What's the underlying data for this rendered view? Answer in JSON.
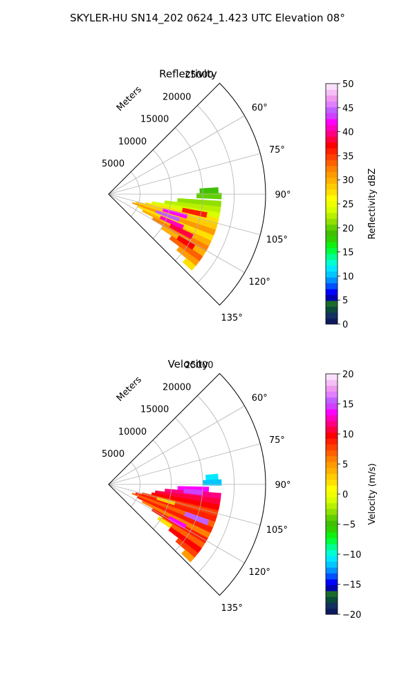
{
  "suptitle": "SKYLER-HU  SN14_202  0624_1.423 UTC Elevation 08°",
  "chart_data": [
    {
      "type": "heatmap",
      "subtype": "polar-sector-radar",
      "title": "Reflectivity",
      "range_label": "Meters",
      "range_ticks": [
        "5000",
        "10000",
        "15000",
        "20000",
        "25000"
      ],
      "range_max": 25000,
      "azimuth_min": 45,
      "azimuth_max": 135,
      "azimuth_ticks": [
        "60°",
        "75°",
        "90°",
        "105°",
        "120°",
        "135°"
      ],
      "grid": true,
      "colorbar": {
        "label": "Reflectivity dBZ",
        "min": 0,
        "max": 50,
        "ticks": [
          "0",
          "5",
          "10",
          "15",
          "20",
          "25",
          "30",
          "35",
          "40",
          "45",
          "50"
        ],
        "colors": [
          "#0d1b5e",
          "#123060",
          "#0b4a3a",
          "#1a6b2a",
          "#0000b0",
          "#0000ff",
          "#0050ff",
          "#0090ff",
          "#00c8ff",
          "#00e8ff",
          "#00ffd0",
          "#00ff90",
          "#00ff40",
          "#10f010",
          "#30d000",
          "#40c000",
          "#60d000",
          "#90e000",
          "#b8f000",
          "#d8ff00",
          "#f0ff00",
          "#ffff00",
          "#ffe000",
          "#ffcc00",
          "#ffb000",
          "#ff9a00",
          "#ff8000",
          "#ff6000",
          "#ff4000",
          "#ff2000",
          "#ff0000",
          "#ff0040",
          "#ff0080",
          "#ff00c0",
          "#ff00ff",
          "#d040ff",
          "#c060ff",
          "#e080ff",
          "#ee99ee",
          "#f5c0f5",
          "#fbe0fb"
        ]
      },
      "echo_cells": [
        {
          "az": 88,
          "r": [
            14500,
            17500
          ],
          "v": 19
        },
        {
          "az": 91,
          "r": [
            14000,
            18000
          ],
          "v": 20
        },
        {
          "az": 95,
          "r": [
            11000,
            18000
          ],
          "v": 21
        },
        {
          "az": 98,
          "r": [
            9000,
            18000
          ],
          "v": 22
        },
        {
          "az": 101,
          "r": [
            7000,
            18000
          ],
          "v": 24
        },
        {
          "az": 104,
          "r": [
            6000,
            18000
          ],
          "v": 27
        },
        {
          "az": 107,
          "r": [
            4500,
            18000
          ],
          "v": 29
        },
        {
          "az": 110,
          "r": [
            4000,
            18000
          ],
          "v": 31
        },
        {
          "az": 113,
          "r": [
            5000,
            18000
          ],
          "v": 28
        },
        {
          "az": 116,
          "r": [
            6000,
            18000
          ],
          "v": 30
        },
        {
          "az": 119,
          "r": [
            8000,
            18000
          ],
          "v": 32
        },
        {
          "az": 122,
          "r": [
            10000,
            18000
          ],
          "v": 30
        },
        {
          "az": 125,
          "r": [
            12000,
            18000
          ],
          "v": 33
        },
        {
          "az": 128,
          "r": [
            14000,
            18000
          ],
          "v": 31
        },
        {
          "az": 131,
          "r": [
            16000,
            18000
          ],
          "v": 28
        },
        {
          "az": 106,
          "r": [
            9000,
            13000
          ],
          "v": 42
        },
        {
          "az": 110,
          "r": [
            8000,
            12000
          ],
          "v": 44
        },
        {
          "az": 114,
          "r": [
            9000,
            13000
          ],
          "v": 41
        },
        {
          "az": 117,
          "r": [
            11000,
            15000
          ],
          "v": 39
        },
        {
          "az": 102,
          "r": [
            12000,
            16000
          ],
          "v": 36
        },
        {
          "az": 122,
          "r": [
            13000,
            16000
          ],
          "v": 37
        }
      ]
    },
    {
      "type": "heatmap",
      "subtype": "polar-sector-radar",
      "title": "Velocity",
      "range_label": "Meters",
      "range_ticks": [
        "5000",
        "10000",
        "15000",
        "20000",
        "25000"
      ],
      "range_max": 25000,
      "azimuth_min": 45,
      "azimuth_max": 135,
      "azimuth_ticks": [
        "60°",
        "75°",
        "90°",
        "105°",
        "120°",
        "135°"
      ],
      "grid": true,
      "colorbar": {
        "label": "Velocity (m/s)",
        "min": -20,
        "max": 20,
        "ticks": [
          "−20",
          "−15",
          "−10",
          "−5",
          "0",
          "5",
          "10",
          "15",
          "20"
        ],
        "colors": [
          "#0d1b5e",
          "#123060",
          "#0b4a3a",
          "#1a6b2a",
          "#0000b0",
          "#0000ff",
          "#0050ff",
          "#0090ff",
          "#00c8ff",
          "#00e8ff",
          "#00ffd0",
          "#00ff90",
          "#00ff40",
          "#10f010",
          "#30d000",
          "#40c000",
          "#60d000",
          "#90e000",
          "#b8f000",
          "#d8ff00",
          "#f0ff00",
          "#ffff00",
          "#ffe000",
          "#ffcc00",
          "#ffb000",
          "#ff9a00",
          "#ff8000",
          "#ff6000",
          "#ff4000",
          "#ff2000",
          "#ff0000",
          "#ff0040",
          "#ff0080",
          "#ff00c0",
          "#ff00ff",
          "#d040ff",
          "#c060ff",
          "#e080ff",
          "#ee99ee",
          "#f5c0f5",
          "#fbe0fb"
        ]
      },
      "echo_cells": [
        {
          "az": 86,
          "r": [
            15500,
            17500
          ],
          "v": -11
        },
        {
          "az": 89,
          "r": [
            15000,
            18000
          ],
          "v": -12
        },
        {
          "az": 93,
          "r": [
            11000,
            16000
          ],
          "v": 14
        },
        {
          "az": 96,
          "r": [
            9000,
            18000
          ],
          "v": 12
        },
        {
          "az": 99,
          "r": [
            7500,
            18000
          ],
          "v": 11
        },
        {
          "az": 102,
          "r": [
            7000,
            18000
          ],
          "v": 10
        },
        {
          "az": 105,
          "r": [
            5500,
            18000
          ],
          "v": 8
        },
        {
          "az": 108,
          "r": [
            4500,
            18000
          ],
          "v": 9
        },
        {
          "az": 111,
          "r": [
            4000,
            18000
          ],
          "v": 7
        },
        {
          "az": 114,
          "r": [
            5000,
            18000
          ],
          "v": 9
        },
        {
          "az": 117,
          "r": [
            6000,
            18000
          ],
          "v": 6
        },
        {
          "az": 120,
          "r": [
            8000,
            18000
          ],
          "v": 9
        },
        {
          "az": 123,
          "r": [
            10000,
            18000
          ],
          "v": 7
        },
        {
          "az": 126,
          "r": [
            12000,
            18000
          ],
          "v": 10
        },
        {
          "az": 129,
          "r": [
            14000,
            18000
          ],
          "v": 8
        },
        {
          "az": 132,
          "r": [
            16000,
            18000
          ],
          "v": 5
        },
        {
          "az": 95,
          "r": [
            12000,
            15000
          ],
          "v": 15
        },
        {
          "az": 111,
          "r": [
            13000,
            17000
          ],
          "v": 16
        },
        {
          "az": 119,
          "r": [
            11000,
            14000
          ],
          "v": 14
        },
        {
          "az": 124,
          "r": [
            9500,
            12000
          ],
          "v": 2
        },
        {
          "az": 106,
          "r": [
            8000,
            11000
          ],
          "v": 3
        }
      ]
    }
  ]
}
